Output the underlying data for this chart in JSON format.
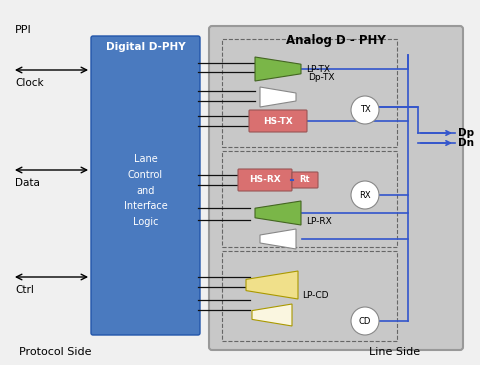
{
  "bg_color": "#f0f0f0",
  "analog_bg": "#c8c8c8",
  "digital_bg": "#4a7abf",
  "digital_label": "Digital D-PHY",
  "analog_label": "Analog D - PHY",
  "lane_label": "Lane\nControl\nand\nInterface\nLogic",
  "protocol_side": "Protocol Side",
  "line_side": "Line Side",
  "ppi_label": "PPI",
  "clock_label": "Clock",
  "data_label": "Data",
  "ctrl_label": "Ctrl",
  "dp_label": "Dp",
  "dn_label": "Dn",
  "lptx_color": "#7ab648",
  "hstx_color": "#d97070",
  "hsrx_color": "#d97070",
  "rt_color": "#d97070",
  "lprx_color": "#7ab648",
  "lpcd_color": "#f0e08a",
  "lpcd_color2": "#faf6e0",
  "white_buf": "#ffffff",
  "line_blue": "#3355cc",
  "bus_color": "#111111"
}
